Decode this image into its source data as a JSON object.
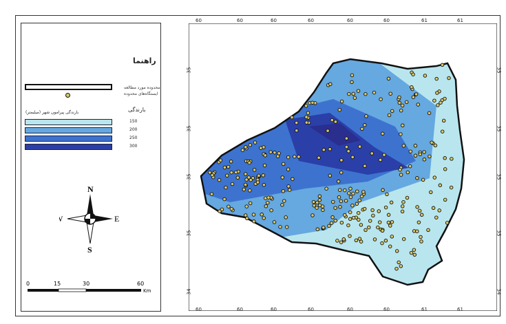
{
  "legend": {
    "title": "راهنما",
    "boundary_label": "محدوده مورد مطالعه",
    "points_label": "ایستگاه‌های محدوده",
    "rain_title": "بارندگی پیرامون شهر (میلیمتر)",
    "rain_head": "بارندگی",
    "classes": [
      {
        "label": "150",
        "color": "#b9e6ee"
      },
      {
        "label": "200",
        "color": "#66a8e0"
      },
      {
        "label": "250",
        "color": "#3d73cf"
      },
      {
        "label": "300",
        "color": "#2b3fa8"
      }
    ]
  },
  "compass": {
    "n": "N",
    "s": "S",
    "e": "E",
    "w": "W"
  },
  "scale": {
    "labels": [
      "0",
      "15",
      "30",
      "60"
    ],
    "unit": "Km"
  },
  "coords": {
    "top": [
      "60",
      "60",
      "60",
      "60",
      "60",
      "60",
      "61",
      "61"
    ],
    "bottom": [
      "60",
      "60",
      "60",
      "60",
      "60",
      "60",
      "61",
      "61"
    ],
    "left": [
      "35",
      "35",
      "35",
      "35",
      "34"
    ],
    "right": [
      "35",
      "35",
      "35",
      "35",
      "34"
    ]
  },
  "colors": {
    "zone1": "#b9e6ee",
    "zone2": "#66a8e0",
    "zone3": "#3d73cf",
    "zone4": "#2b3fa8",
    "station": "#d8c86a"
  }
}
